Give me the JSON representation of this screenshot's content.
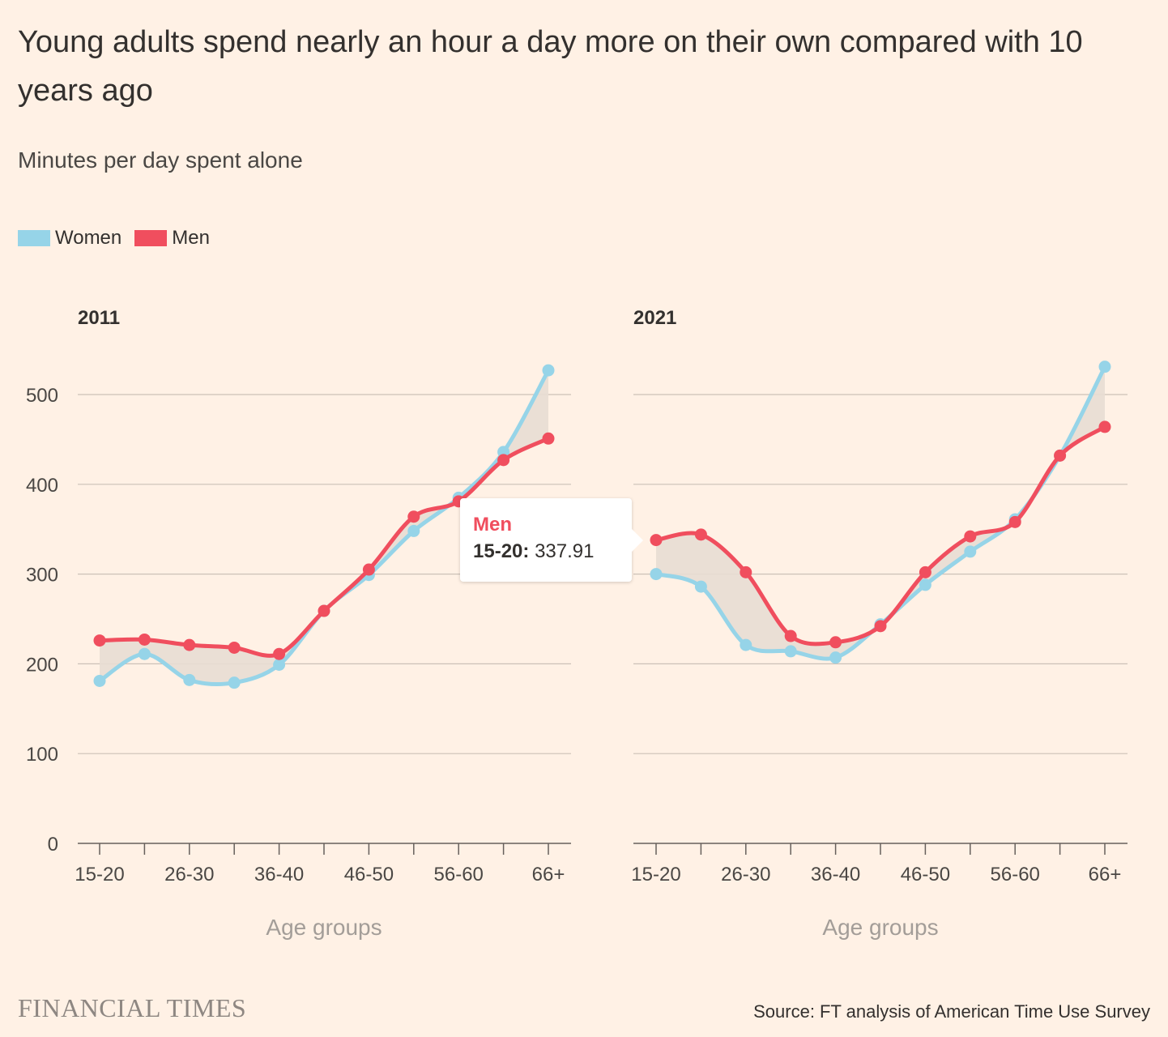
{
  "title": "Young adults spend nearly an hour a day more on their own compared with 10 years ago",
  "subtitle": "Minutes per day spent alone",
  "legend": [
    {
      "label": "Women",
      "color": "#96d4e8"
    },
    {
      "label": "Men",
      "color": "#f04e5e"
    }
  ],
  "colors": {
    "background": "#fff1e5",
    "women": "#96d4e8",
    "men": "#f04e5e",
    "gap_fill": "#e8ddd3",
    "grid": "#ccc1b7"
  },
  "tooltip": {
    "series": "Men",
    "category": "15-20",
    "value_label": "337.91"
  },
  "footer": {
    "logo": "FINANCIAL TIMES",
    "source": "Source: FT analysis of American Time Use Survey"
  },
  "chart_data": [
    {
      "type": "line",
      "title": "2011",
      "xlabel": "Age groups",
      "ylabel": "",
      "ylim": [
        0,
        500
      ],
      "yticks": [
        0,
        100,
        200,
        300,
        400,
        500
      ],
      "x_tick_labels": [
        "15-20",
        "26-30",
        "36-40",
        "46-50",
        "56-60",
        "66+"
      ],
      "point_count": 11,
      "grid": true,
      "series": [
        {
          "name": "Women",
          "values": [
            181,
            211,
            182,
            179,
            199,
            259,
            299,
            348,
            385,
            436,
            527
          ]
        },
        {
          "name": "Men",
          "values": [
            226,
            227,
            221,
            218,
            211,
            259,
            305,
            364,
            381,
            427,
            451
          ]
        }
      ]
    },
    {
      "type": "line",
      "title": "2021",
      "xlabel": "Age groups",
      "ylabel": "",
      "ylim": [
        0,
        500
      ],
      "yticks": [
        0,
        100,
        200,
        300,
        400,
        500
      ],
      "x_tick_labels": [
        "15-20",
        "26-30",
        "36-40",
        "46-50",
        "56-60",
        "66+"
      ],
      "point_count": 11,
      "grid": true,
      "series": [
        {
          "name": "Women",
          "values": [
            300,
            286,
            221,
            214,
            207,
            244,
            288,
            325,
            361,
            432,
            531
          ]
        },
        {
          "name": "Men",
          "values": [
            337.91,
            344,
            302,
            231,
            224,
            242,
            302,
            342,
            358,
            432,
            464
          ]
        }
      ]
    }
  ]
}
